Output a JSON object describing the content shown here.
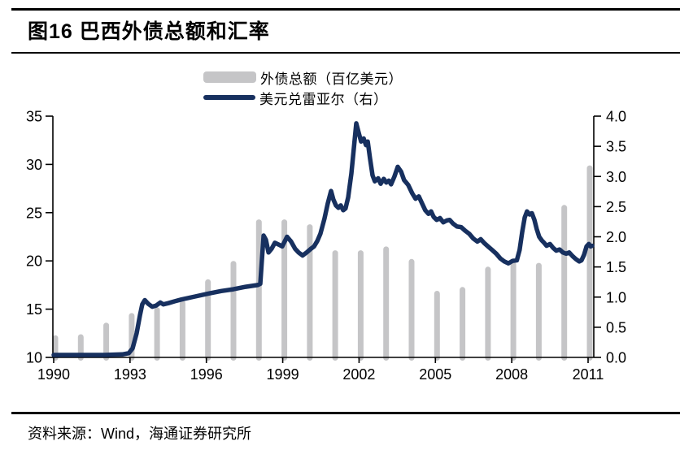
{
  "header": {
    "title": "图16 巴西外债总额和汇率"
  },
  "source": {
    "text": "资料来源：Wind，海通证券研究所"
  },
  "chart_data": {
    "type": "bar+line",
    "title": "图16 巴西外债总额和汇率",
    "bar_series": {
      "name": "外债总额（百亿美元）",
      "axis": "left",
      "categories": [
        1990,
        1991,
        1992,
        1993,
        1994,
        1995,
        1996,
        1997,
        1998,
        1999,
        2000,
        2001,
        2002,
        2003,
        2004,
        2005,
        2006,
        2007,
        2008,
        2009,
        2010,
        2011
      ],
      "values": [
        12.3,
        12.4,
        13.6,
        14.6,
        15.2,
        15.9,
        18.1,
        20.0,
        24.3,
        24.3,
        23.8,
        21.1,
        21.1,
        21.5,
        20.2,
        16.9,
        17.3,
        19.4,
        19.9,
        19.8,
        25.8,
        29.9
      ]
    },
    "line_series": {
      "name": "美元兑雷亚尔（右）",
      "axis": "right",
      "points": [
        [
          1990.0,
          0.04
        ],
        [
          1991.1,
          0.04
        ],
        [
          1992.0,
          0.04
        ],
        [
          1992.7,
          0.05
        ],
        [
          1992.95,
          0.07
        ],
        [
          1993.1,
          0.15
        ],
        [
          1993.26,
          0.4
        ],
        [
          1993.39,
          0.7
        ],
        [
          1993.48,
          0.88
        ],
        [
          1993.58,
          0.95
        ],
        [
          1993.71,
          0.89
        ],
        [
          1993.87,
          0.84
        ],
        [
          1994.03,
          0.86
        ],
        [
          1994.19,
          0.91
        ],
        [
          1994.31,
          0.88
        ],
        [
          1994.51,
          0.9
        ],
        [
          1994.76,
          0.93
        ],
        [
          1995.02,
          0.96
        ],
        [
          1995.56,
          1.01
        ],
        [
          1996.1,
          1.06
        ],
        [
          1996.58,
          1.1
        ],
        [
          1997.06,
          1.13
        ],
        [
          1997.54,
          1.17
        ],
        [
          1998.02,
          1.2
        ],
        [
          1998.12,
          1.22
        ],
        [
          1998.18,
          1.6
        ],
        [
          1998.25,
          2.02
        ],
        [
          1998.34,
          1.95
        ],
        [
          1998.44,
          1.74
        ],
        [
          1998.56,
          1.8
        ],
        [
          1998.69,
          1.9
        ],
        [
          1998.85,
          1.87
        ],
        [
          1998.98,
          1.84
        ],
        [
          1999.17,
          2.0
        ],
        [
          1999.33,
          1.92
        ],
        [
          1999.49,
          1.8
        ],
        [
          1999.62,
          1.74
        ],
        [
          1999.78,
          1.69
        ],
        [
          1999.94,
          1.74
        ],
        [
          2000.1,
          1.8
        ],
        [
          2000.23,
          1.84
        ],
        [
          2000.36,
          1.93
        ],
        [
          2000.48,
          2.05
        ],
        [
          2000.64,
          2.3
        ],
        [
          2000.77,
          2.55
        ],
        [
          2000.9,
          2.76
        ],
        [
          2000.99,
          2.62
        ],
        [
          2001.09,
          2.52
        ],
        [
          2001.19,
          2.48
        ],
        [
          2001.28,
          2.52
        ],
        [
          2001.38,
          2.44
        ],
        [
          2001.47,
          2.47
        ],
        [
          2001.57,
          2.65
        ],
        [
          2001.7,
          3.05
        ],
        [
          2001.79,
          3.45
        ],
        [
          2001.89,
          3.88
        ],
        [
          2001.99,
          3.72
        ],
        [
          2002.08,
          3.58
        ],
        [
          2002.18,
          3.63
        ],
        [
          2002.27,
          3.52
        ],
        [
          2002.34,
          3.58
        ],
        [
          2002.43,
          3.3
        ],
        [
          2002.53,
          3.02
        ],
        [
          2002.62,
          2.92
        ],
        [
          2002.75,
          2.97
        ],
        [
          2002.85,
          2.88
        ],
        [
          2002.97,
          2.96
        ],
        [
          2003.07,
          2.9
        ],
        [
          2003.17,
          2.93
        ],
        [
          2003.26,
          2.87
        ],
        [
          2003.39,
          3.0
        ],
        [
          2003.52,
          3.16
        ],
        [
          2003.65,
          3.08
        ],
        [
          2003.77,
          2.94
        ],
        [
          2003.93,
          2.86
        ],
        [
          2004.09,
          2.72
        ],
        [
          2004.22,
          2.63
        ],
        [
          2004.35,
          2.67
        ],
        [
          2004.48,
          2.55
        ],
        [
          2004.6,
          2.44
        ],
        [
          2004.73,
          2.38
        ],
        [
          2004.83,
          2.42
        ],
        [
          2004.93,
          2.33
        ],
        [
          2005.05,
          2.28
        ],
        [
          2005.18,
          2.31
        ],
        [
          2005.31,
          2.24
        ],
        [
          2005.44,
          2.27
        ],
        [
          2005.56,
          2.28
        ],
        [
          2005.69,
          2.22
        ],
        [
          2005.85,
          2.17
        ],
        [
          2006.01,
          2.16
        ],
        [
          2006.17,
          2.1
        ],
        [
          2006.33,
          2.05
        ],
        [
          2006.49,
          1.97
        ],
        [
          2006.65,
          1.92
        ],
        [
          2006.78,
          1.96
        ],
        [
          2006.91,
          1.9
        ],
        [
          2007.07,
          1.84
        ],
        [
          2007.23,
          1.78
        ],
        [
          2007.39,
          1.72
        ],
        [
          2007.55,
          1.64
        ],
        [
          2007.71,
          1.59
        ],
        [
          2007.87,
          1.56
        ],
        [
          2008.03,
          1.6
        ],
        [
          2008.2,
          1.61
        ],
        [
          2008.31,
          1.78
        ],
        [
          2008.41,
          2.08
        ],
        [
          2008.51,
          2.32
        ],
        [
          2008.6,
          2.42
        ],
        [
          2008.7,
          2.37
        ],
        [
          2008.79,
          2.39
        ],
        [
          2008.89,
          2.28
        ],
        [
          2008.98,
          2.13
        ],
        [
          2009.08,
          2.0
        ],
        [
          2009.18,
          1.94
        ],
        [
          2009.27,
          1.9
        ],
        [
          2009.37,
          1.85
        ],
        [
          2009.5,
          1.88
        ],
        [
          2009.62,
          1.82
        ],
        [
          2009.75,
          1.77
        ],
        [
          2009.88,
          1.79
        ],
        [
          2010.01,
          1.74
        ],
        [
          2010.14,
          1.72
        ],
        [
          2010.26,
          1.74
        ],
        [
          2010.39,
          1.68
        ],
        [
          2010.52,
          1.63
        ],
        [
          2010.65,
          1.59
        ],
        [
          2010.74,
          1.61
        ],
        [
          2010.84,
          1.7
        ],
        [
          2010.94,
          1.84
        ],
        [
          2011.03,
          1.88
        ],
        [
          2011.1,
          1.84
        ],
        [
          2011.16,
          1.85
        ]
      ]
    },
    "left_axis": {
      "min": 10,
      "max": 35,
      "step": 5,
      "ticks": [
        "10",
        "15",
        "20",
        "25",
        "30",
        "35"
      ]
    },
    "right_axis": {
      "min": 0,
      "max": 4,
      "step": 0.5,
      "ticks": [
        "0.0",
        "0.5",
        "1.0",
        "1.5",
        "2.0",
        "2.5",
        "3.0",
        "3.5",
        "4.0"
      ]
    },
    "x_axis": {
      "range": [
        1990,
        2011
      ],
      "tick_labels": [
        "1990",
        "1993",
        "1996",
        "1999",
        "2002",
        "2005",
        "2008",
        "2011"
      ]
    },
    "colors": {
      "bar": "#C5C5C7",
      "line": "#17305F",
      "axis": "#000000"
    },
    "legend_position": "top-center",
    "grid": "off"
  }
}
